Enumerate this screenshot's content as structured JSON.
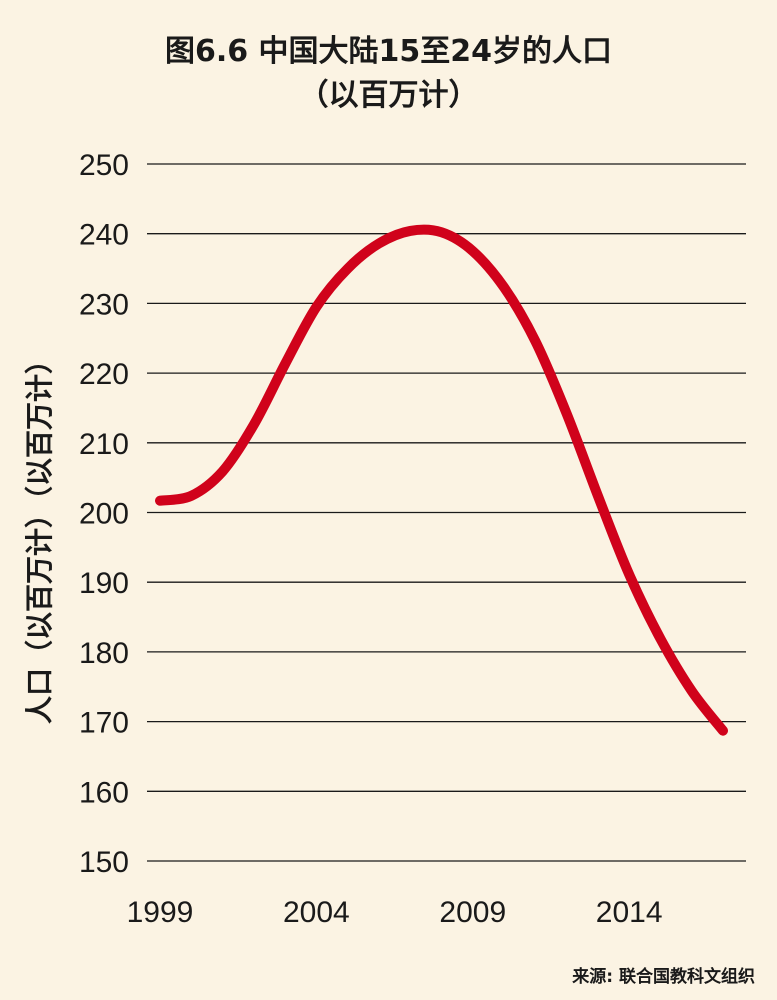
{
  "title": {
    "line1": "图6.6 中国大陆15至24岁的人口",
    "line2": "（以百万计）"
  },
  "source": "来源: 联合国教科文组织",
  "colors": {
    "background": "#fbf3e3",
    "line": "#d0021b",
    "grid": "#1a1a1a",
    "text": "#1a1a1a"
  },
  "chart_data": {
    "type": "line",
    "title": "图6.6 中国大陆15至24岁的人口（以百万计）",
    "xlabel": "",
    "ylabel": "人口（以百万计）（以百万计）",
    "xlim": [
      1999,
      2017
    ],
    "ylim": [
      150,
      250
    ],
    "xticks": [
      "1999",
      "2004",
      "2009",
      "2014"
    ],
    "yticks": [
      "250",
      "240",
      "230",
      "220",
      "210",
      "200",
      "190",
      "180",
      "170",
      "160",
      "150"
    ],
    "grid": "horizontal",
    "series": [
      {
        "x": [
          1999,
          2000,
          2001,
          2002,
          2003,
          2004,
          2005,
          2006,
          2007,
          2008,
          2009,
          2010,
          2011,
          2012,
          2013,
          2014,
          2015,
          2016,
          2017
        ],
        "values": [
          201.7,
          202.4,
          205.9,
          212.6,
          221.3,
          229.5,
          235.0,
          238.6,
          240.4,
          240.2,
          237.5,
          232.3,
          224.6,
          214.2,
          202.4,
          191.1,
          181.9,
          174.4,
          168.7
        ]
      }
    ]
  }
}
